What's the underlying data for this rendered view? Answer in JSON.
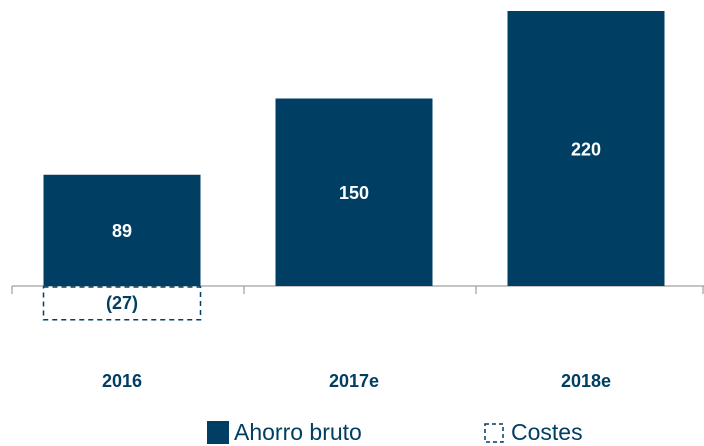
{
  "chart_data": {
    "type": "bar",
    "categories": [
      "2016",
      "2017e",
      "2018e"
    ],
    "series": [
      {
        "name": "Ahorro bruto",
        "color": "#003f63",
        "values": [
          89,
          150,
          220
        ]
      },
      {
        "name": "Costes",
        "color": "#003f63",
        "values": [
          -27,
          null,
          null
        ],
        "value_labels": [
          "(27)",
          null,
          null
        ],
        "dashed": true
      }
    ]
  }
}
